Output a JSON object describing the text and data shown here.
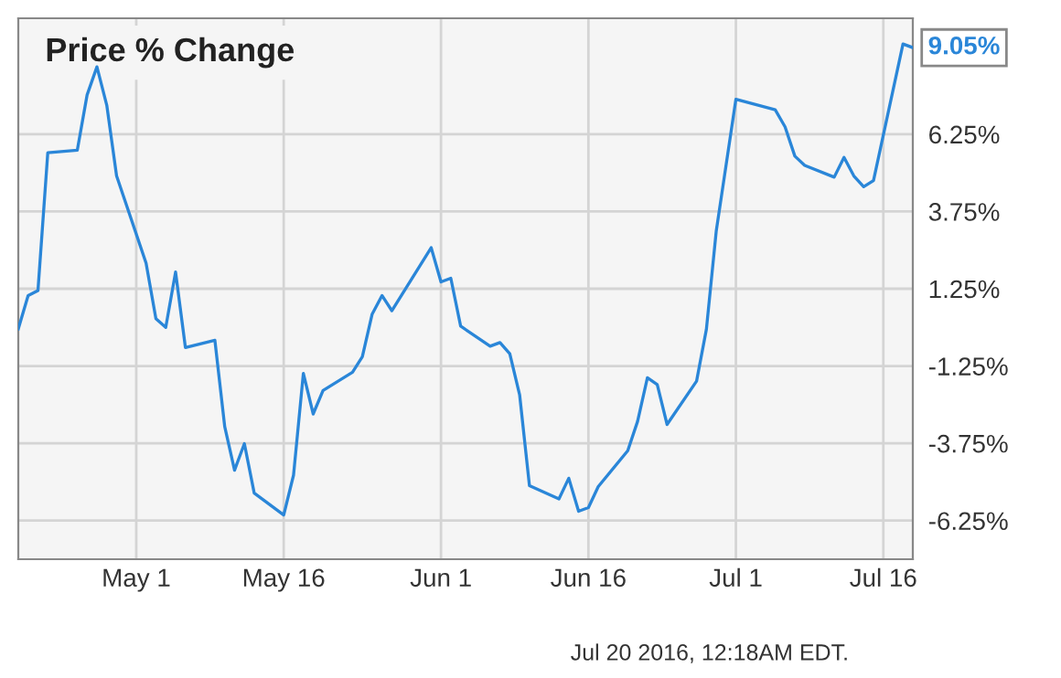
{
  "chart_data": {
    "type": "line",
    "title": "Price % Change",
    "x": [
      "2016-04-19",
      "2016-04-20",
      "2016-04-21",
      "2016-04-22",
      "2016-04-25",
      "2016-04-26",
      "2016-04-27",
      "2016-04-28",
      "2016-04-29",
      "2016-05-02",
      "2016-05-03",
      "2016-05-04",
      "2016-05-05",
      "2016-05-06",
      "2016-05-09",
      "2016-05-10",
      "2016-05-11",
      "2016-05-12",
      "2016-05-13",
      "2016-05-16",
      "2016-05-17",
      "2016-05-18",
      "2016-05-19",
      "2016-05-20",
      "2016-05-23",
      "2016-05-24",
      "2016-05-25",
      "2016-05-26",
      "2016-05-27",
      "2016-05-31",
      "2016-06-01",
      "2016-06-02",
      "2016-06-03",
      "2016-06-06",
      "2016-06-07",
      "2016-06-08",
      "2016-06-09",
      "2016-06-10",
      "2016-06-13",
      "2016-06-14",
      "2016-06-15",
      "2016-06-16",
      "2016-06-17",
      "2016-06-20",
      "2016-06-21",
      "2016-06-22",
      "2016-06-23",
      "2016-06-24",
      "2016-06-27",
      "2016-06-28",
      "2016-06-29",
      "2016-07-01",
      "2016-07-05",
      "2016-07-06",
      "2016-07-07",
      "2016-07-08",
      "2016-07-11",
      "2016-07-12",
      "2016-07-13",
      "2016-07-14",
      "2016-07-15",
      "2016-07-18",
      "2016-07-19"
    ],
    "series": [
      {
        "color": "#2a86d8",
        "values": [
          -0.05,
          1.03,
          1.19,
          5.65,
          5.73,
          7.52,
          8.43,
          7.19,
          4.9,
          2.08,
          0.28,
          0.0,
          1.79,
          -0.65,
          -0.42,
          -3.21,
          -4.62,
          -3.76,
          -5.36,
          -6.07,
          -4.78,
          -1.49,
          -2.8,
          -2.04,
          -1.45,
          -0.95,
          0.43,
          1.03,
          0.54,
          2.58,
          1.47,
          1.59,
          0.04,
          -0.61,
          -0.49,
          -0.85,
          -2.18,
          -5.12,
          -5.55,
          -4.88,
          -5.95,
          -5.83,
          -5.15,
          -3.99,
          -3.04,
          -1.63,
          -1.85,
          -3.14,
          -1.74,
          -0.06,
          3.11,
          7.38,
          7.04,
          6.49,
          5.54,
          5.24,
          4.86,
          5.5,
          4.9,
          4.55,
          4.75,
          9.17,
          9.05
        ]
      }
    ],
    "xlim": [
      "2016-04-19",
      "2016-07-19"
    ],
    "xticks": [
      {
        "value": "2016-05-01",
        "label": "May 1"
      },
      {
        "value": "2016-05-16",
        "label": "May 16"
      },
      {
        "value": "2016-06-01",
        "label": "Jun 1"
      },
      {
        "value": "2016-06-16",
        "label": "Jun 16"
      },
      {
        "value": "2016-07-01",
        "label": "Jul 1"
      },
      {
        "value": "2016-07-16",
        "label": "Jul 16"
      }
    ],
    "ylim": [
      -7.5,
      10
    ],
    "yticks": [
      {
        "value": -6.25,
        "label": "-6.25%"
      },
      {
        "value": -3.75,
        "label": "-3.75%"
      },
      {
        "value": -1.25,
        "label": "-1.25%"
      },
      {
        "value": 1.25,
        "label": "1.25%"
      },
      {
        "value": 3.75,
        "label": "3.75%"
      },
      {
        "value": 6.25,
        "label": "6.25%"
      }
    ],
    "grid": true,
    "annotations": [
      {
        "text": "9.05%",
        "x": "2016-07-19",
        "y": 9.05
      },
      "Jul 20 2016, 12:18AM EDT."
    ]
  }
}
